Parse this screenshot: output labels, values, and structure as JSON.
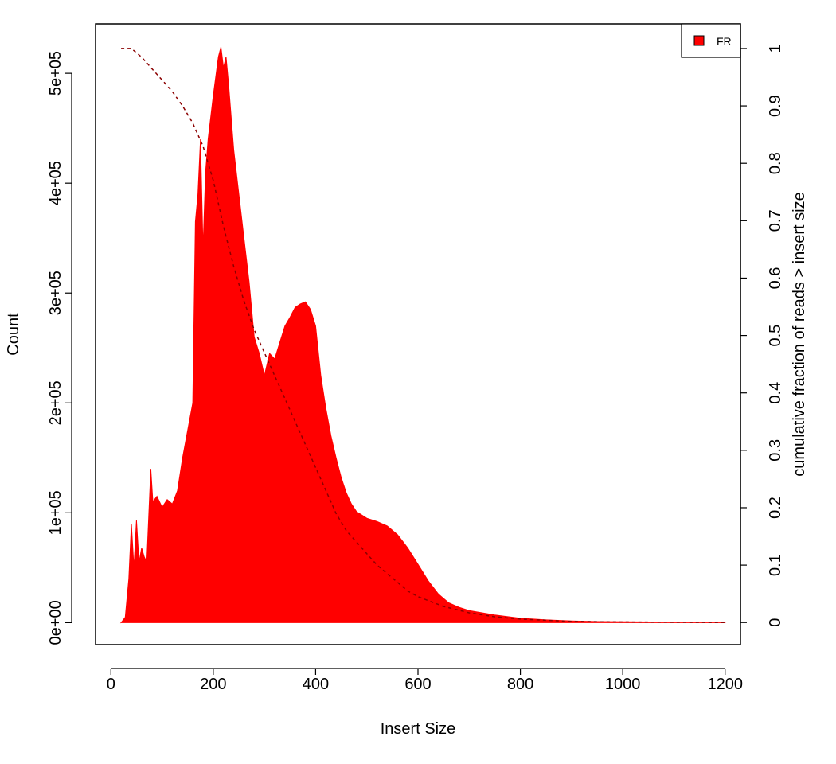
{
  "chart_data": {
    "type": "area",
    "xlabel": "Insert Size",
    "ylabel": "Count",
    "y2label": "cumulative fraction of reads > insert size",
    "xlim": [
      -30,
      1230
    ],
    "ylim": [
      -20000,
      545000
    ],
    "y2lim": [
      -0.0385,
      1.0429
    ],
    "x_ticks": [
      0,
      200,
      400,
      600,
      800,
      1000,
      1200
    ],
    "x_tick_labels": [
      "0",
      "200",
      "400",
      "600",
      "800",
      "1000",
      "1200"
    ],
    "y_ticks": [
      0,
      100000,
      200000,
      300000,
      400000,
      500000
    ],
    "y_tick_labels": [
      "0e+00",
      "1e+05",
      "2e+05",
      "3e+05",
      "4e+05",
      "5e+05"
    ],
    "y2_ticks": [
      0,
      0.1,
      0.2,
      0.3,
      0.4,
      0.5,
      0.6,
      0.7,
      0.8,
      0.9,
      1
    ],
    "y2_tick_labels": [
      "0",
      "0.1",
      "0.2",
      "0.3",
      "0.4",
      "0.5",
      "0.6",
      "0.7",
      "0.8",
      "0.9",
      "1"
    ],
    "legend": {
      "position": "top-right",
      "entries": [
        {
          "name": "FR",
          "color": "#ff0000"
        }
      ]
    },
    "series": [
      {
        "name": "FR",
        "kind": "histogram",
        "color": "#ff0000",
        "x": [
          20,
          28,
          35,
          40,
          45,
          50,
          55,
          60,
          65,
          70,
          78,
          82,
          90,
          100,
          110,
          120,
          130,
          140,
          150,
          160,
          165,
          170,
          175,
          180,
          185,
          190,
          200,
          210,
          215,
          220,
          225,
          230,
          240,
          250,
          260,
          270,
          280,
          290,
          300,
          310,
          320,
          330,
          340,
          350,
          360,
          370,
          380,
          390,
          400,
          410,
          420,
          430,
          440,
          450,
          460,
          470,
          480,
          490,
          500,
          520,
          540,
          560,
          580,
          600,
          620,
          640,
          660,
          680,
          700,
          750,
          800,
          850,
          900,
          950,
          1000,
          1100,
          1200
        ],
        "values": [
          0,
          5000,
          40000,
          90000,
          50000,
          93000,
          55000,
          68000,
          60000,
          55000,
          140000,
          110000,
          115000,
          105000,
          112000,
          108000,
          120000,
          150000,
          175000,
          200000,
          365000,
          390000,
          440000,
          340000,
          410000,
          440000,
          480000,
          515000,
          524000,
          505000,
          515000,
          490000,
          430000,
          390000,
          350000,
          310000,
          260000,
          245000,
          225000,
          245000,
          240000,
          255000,
          270000,
          278000,
          287000,
          290000,
          292000,
          285000,
          270000,
          225000,
          195000,
          170000,
          150000,
          132000,
          118000,
          108000,
          101000,
          98000,
          95000,
          92000,
          88000,
          80000,
          68000,
          53000,
          38000,
          26000,
          18000,
          14000,
          11000,
          7000,
          4000,
          2500,
          1500,
          1000,
          800,
          500,
          400
        ]
      },
      {
        "name": "cumulative fraction of reads > insert size",
        "kind": "line",
        "axis": "right",
        "color": "#8b0000",
        "line_style": "dashed",
        "x": [
          20,
          40,
          60,
          80,
          100,
          120,
          140,
          160,
          180,
          190,
          200,
          220,
          240,
          260,
          280,
          300,
          320,
          340,
          360,
          380,
          400,
          420,
          440,
          460,
          480,
          500,
          520,
          540,
          560,
          580,
          600,
          650,
          700,
          750,
          800,
          900,
          1000,
          1200
        ],
        "values": [
          1.0,
          1.0,
          0.985,
          0.965,
          0.945,
          0.925,
          0.9,
          0.87,
          0.83,
          0.8,
          0.77,
          0.69,
          0.62,
          0.56,
          0.51,
          0.47,
          0.43,
          0.39,
          0.35,
          0.31,
          0.27,
          0.23,
          0.19,
          0.16,
          0.14,
          0.12,
          0.1,
          0.085,
          0.07,
          0.055,
          0.045,
          0.028,
          0.017,
          0.01,
          0.006,
          0.002,
          0.001,
          0.0
        ]
      }
    ]
  }
}
